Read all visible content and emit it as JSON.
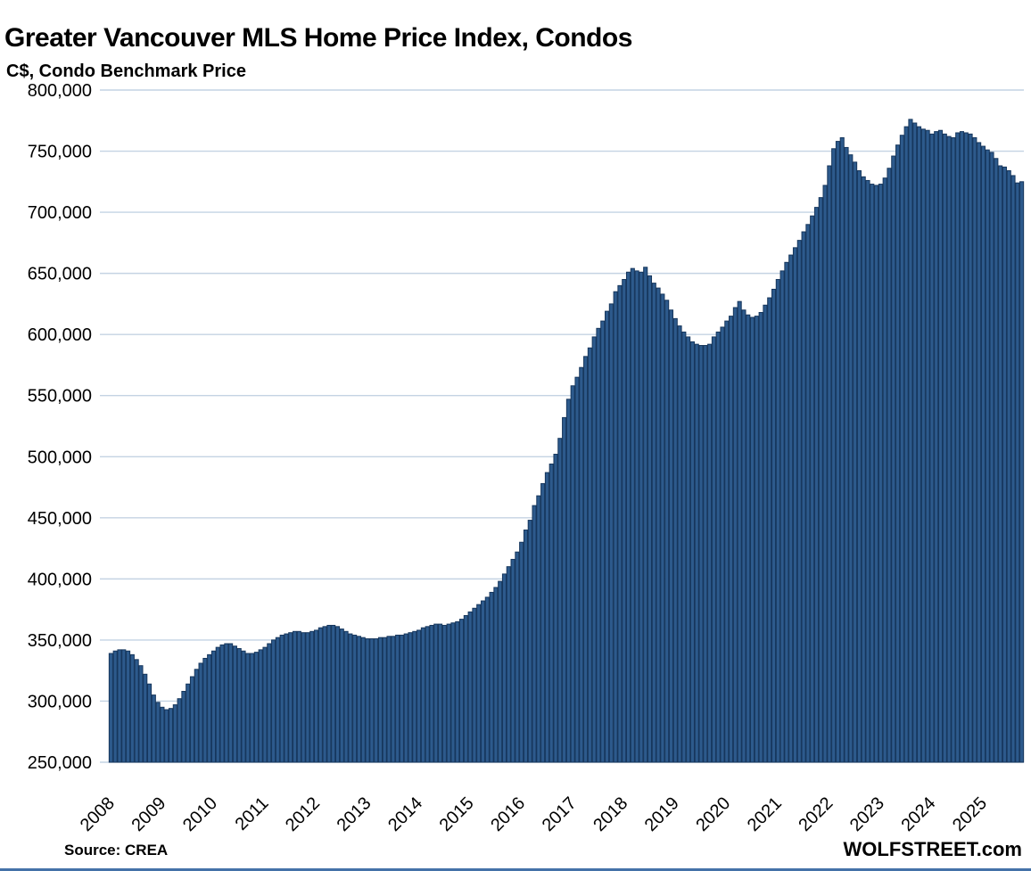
{
  "header": {
    "title": "Greater Vancouver MLS Home Price Index, Condos",
    "subtitle": "C$, Condo Benchmark Price"
  },
  "footer": {
    "source": "Source: CREA",
    "brand": "WOLFSTREET.com"
  },
  "theme": {
    "bar_fill": "#2D5A8C",
    "bar_border": "#16365C",
    "gridline": "#C4D3E3",
    "text": "#000000",
    "bottom_rule": "#4472A8",
    "background": "#FFFFFF"
  },
  "chart_data": {
    "type": "bar",
    "title": "Greater Vancouver MLS Home Price Index, Condos",
    "subtitle": "C$, Condo Benchmark Price",
    "xlabel": "",
    "ylabel": "C$, Condo Benchmark Price",
    "unit": "CAD",
    "grid": true,
    "legend": "none",
    "ylim": [
      250000,
      800000
    ],
    "y_tick_step": 50000,
    "y_tick_labels": [
      "800,000",
      "750,000",
      "700,000",
      "650,000",
      "600,000",
      "550,000",
      "500,000",
      "450,000",
      "400,000",
      "350,000",
      "300,000",
      "250,000"
    ],
    "x_tick_years": [
      "2008",
      "2009",
      "2010",
      "2011",
      "2012",
      "2013",
      "2014",
      "2015",
      "2016",
      "2017",
      "2018",
      "2019",
      "2020",
      "2021",
      "2022",
      "2023",
      "2024",
      "2025"
    ],
    "start_month": "2008-01",
    "end_month": "2025-10",
    "frequency": "monthly",
    "values": [
      339000,
      341000,
      342000,
      342000,
      341000,
      338000,
      334000,
      329000,
      322000,
      314000,
      305000,
      299000,
      295000,
      293000,
      294000,
      297000,
      302000,
      308000,
      314000,
      320000,
      326000,
      331000,
      335000,
      338000,
      341000,
      344000,
      346000,
      347000,
      347000,
      345000,
      343000,
      341000,
      339000,
      339000,
      340000,
      342000,
      344000,
      347000,
      350000,
      352000,
      354000,
      355000,
      356000,
      357000,
      357000,
      356000,
      356000,
      357000,
      358000,
      360000,
      361000,
      362000,
      362000,
      361000,
      359000,
      357000,
      355000,
      354000,
      353000,
      352000,
      351000,
      351000,
      351000,
      352000,
      352000,
      353000,
      353000,
      354000,
      354000,
      355000,
      356000,
      357000,
      358000,
      360000,
      361000,
      362000,
      363000,
      363000,
      362000,
      363000,
      364000,
      365000,
      367000,
      370000,
      373000,
      376000,
      379000,
      382000,
      385000,
      389000,
      393000,
      398000,
      404000,
      410000,
      416000,
      422000,
      430000,
      440000,
      448000,
      460000,
      468000,
      478000,
      487000,
      494000,
      502000,
      515000,
      532000,
      547000,
      558000,
      565000,
      573000,
      582000,
      589000,
      598000,
      605000,
      611000,
      619000,
      625000,
      635000,
      640000,
      645000,
      651000,
      654000,
      652000,
      651000,
      655000,
      648000,
      642000,
      638000,
      633000,
      628000,
      620000,
      613000,
      607000,
      602000,
      598000,
      594000,
      592000,
      591000,
      591000,
      592000,
      598000,
      602000,
      606000,
      611000,
      615000,
      622000,
      627000,
      620000,
      616000,
      614000,
      615000,
      618000,
      624000,
      630000,
      637000,
      645000,
      652000,
      659000,
      665000,
      671000,
      677000,
      684000,
      690000,
      697000,
      704000,
      712000,
      722000,
      738000,
      752000,
      758000,
      761000,
      753000,
      747000,
      741000,
      734000,
      729000,
      726000,
      723000,
      722000,
      723000,
      728000,
      736000,
      746000,
      755000,
      763000,
      770000,
      776000,
      773000,
      770000,
      768000,
      767000,
      764000,
      766000,
      767000,
      764000,
      762000,
      761000,
      765000,
      766000,
      765000,
      764000,
      761000,
      757000,
      754000,
      751000,
      749000,
      744000,
      738000,
      737000,
      734000,
      730000,
      724000,
      725000
    ]
  }
}
